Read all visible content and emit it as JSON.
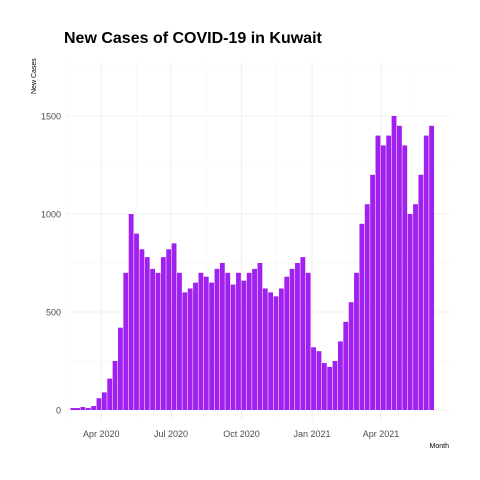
{
  "chart_data": {
    "type": "bar",
    "title": "New Cases of COVID-19 in Kuwait",
    "xlabel": "Month",
    "ylabel": "New Cases",
    "ylim": [
      0,
      1800
    ],
    "xlim": [
      "2020-02-15",
      "2021-06-30"
    ],
    "grid": true,
    "bar_color": "#a020f0",
    "x_ticks": [
      {
        "date": "2020-04-01",
        "label": "Apr 2020"
      },
      {
        "date": "2020-07-01",
        "label": "Jul 2020"
      },
      {
        "date": "2020-10-01",
        "label": "Oct 2020"
      },
      {
        "date": "2021-01-01",
        "label": "Jan 2021"
      },
      {
        "date": "2021-04-01",
        "label": "Apr 2021"
      }
    ],
    "y_ticks": [
      {
        "value": 0,
        "label": "0"
      },
      {
        "value": 500,
        "label": "500"
      },
      {
        "value": 1000,
        "label": "1000"
      },
      {
        "value": 1500,
        "label": "1500"
      }
    ],
    "series": [
      {
        "x": [
          "2020-02-24",
          "2020-03-01",
          "2020-03-08",
          "2020-03-15",
          "2020-03-22",
          "2020-03-29",
          "2020-04-05",
          "2020-04-12",
          "2020-04-19",
          "2020-04-26",
          "2020-05-03",
          "2020-05-10",
          "2020-05-17",
          "2020-05-24",
          "2020-05-31",
          "2020-06-07",
          "2020-06-14",
          "2020-06-21",
          "2020-06-28",
          "2020-07-05",
          "2020-07-12",
          "2020-07-19",
          "2020-07-26",
          "2020-08-02",
          "2020-08-09",
          "2020-08-16",
          "2020-08-23",
          "2020-08-30",
          "2020-09-06",
          "2020-09-13",
          "2020-09-20",
          "2020-09-27",
          "2020-10-04",
          "2020-10-11",
          "2020-10-18",
          "2020-10-25",
          "2020-11-01",
          "2020-11-08",
          "2020-11-15",
          "2020-11-22",
          "2020-11-29",
          "2020-12-06",
          "2020-12-13",
          "2020-12-20",
          "2020-12-27",
          "2021-01-03",
          "2021-01-10",
          "2021-01-17",
          "2021-01-24",
          "2021-01-31",
          "2021-02-07",
          "2021-02-14",
          "2021-02-21",
          "2021-02-28",
          "2021-03-07",
          "2021-03-14",
          "2021-03-21",
          "2021-03-28",
          "2021-04-04",
          "2021-04-11",
          "2021-04-18",
          "2021-04-25",
          "2021-05-02",
          "2021-05-09",
          "2021-05-16",
          "2021-05-23",
          "2021-05-30",
          "2021-06-06"
        ],
        "values": [
          10,
          10,
          15,
          10,
          20,
          60,
          90,
          160,
          250,
          420,
          700,
          1000,
          900,
          820,
          780,
          720,
          700,
          780,
          820,
          850,
          700,
          600,
          620,
          650,
          700,
          680,
          650,
          720,
          750,
          700,
          640,
          700,
          660,
          700,
          720,
          750,
          620,
          600,
          580,
          620,
          680,
          720,
          750,
          780,
          700,
          320,
          300,
          240,
          220,
          250,
          350,
          450,
          550,
          700,
          950,
          1050,
          1200,
          1400,
          1350,
          1400,
          1500,
          1450,
          1350,
          1000,
          1050,
          1200,
          1400,
          1450
        ]
      }
    ]
  }
}
